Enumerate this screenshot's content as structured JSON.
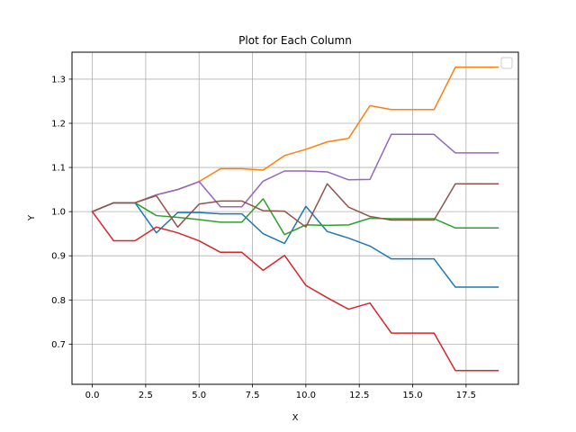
{
  "chart_data": {
    "type": "line",
    "title": "Plot for Each Column",
    "xlabel": "X",
    "ylabel": "Y",
    "xlim": [
      -0.95,
      19.95
    ],
    "ylim": [
      0.609,
      1.361
    ],
    "xticks": [
      0.0,
      2.5,
      5.0,
      7.5,
      10.0,
      12.5,
      15.0,
      17.5
    ],
    "xtick_labels": [
      "0.0",
      "2.5",
      "5.0",
      "7.5",
      "10.0",
      "12.5",
      "15.0",
      "17.5"
    ],
    "yticks": [
      0.7,
      0.8,
      0.9,
      1.0,
      1.1,
      1.2,
      1.3
    ],
    "ytick_labels": [
      "0.7",
      "0.8",
      "0.9",
      "1.0",
      "1.1",
      "1.2",
      "1.3"
    ],
    "grid": true,
    "legend": "upper right (empty)",
    "x": [
      0,
      1,
      2,
      3,
      4,
      5,
      6,
      7,
      8,
      9,
      10,
      11,
      12,
      13,
      14,
      15,
      16,
      17,
      18,
      19
    ],
    "series": [
      {
        "color": "#1f77b4",
        "values": [
          1.0,
          1.02,
          1.02,
          0.952,
          0.998,
          0.998,
          0.995,
          0.995,
          0.95,
          0.928,
          1.012,
          0.955,
          0.94,
          0.922,
          0.893,
          0.893,
          0.893,
          0.829,
          0.829,
          0.829
        ]
      },
      {
        "color": "#ff7f0e",
        "values": [
          1.0,
          1.02,
          1.02,
          1.038,
          1.05,
          1.068,
          1.097,
          1.097,
          1.094,
          1.127,
          1.141,
          1.158,
          1.166,
          1.24,
          1.231,
          1.231,
          1.231,
          1.327,
          1.327,
          1.327
        ]
      },
      {
        "color": "#2ca02c",
        "values": [
          1.0,
          1.02,
          1.02,
          0.991,
          0.987,
          0.982,
          0.976,
          0.976,
          1.029,
          0.948,
          0.97,
          0.969,
          0.97,
          0.985,
          0.984,
          0.984,
          0.984,
          0.963,
          0.963,
          0.963
        ]
      },
      {
        "color": "#d62728",
        "values": [
          1.0,
          0.934,
          0.934,
          0.965,
          0.952,
          0.934,
          0.908,
          0.908,
          0.867,
          0.901,
          0.833,
          0.805,
          0.779,
          0.793,
          0.725,
          0.725,
          0.725,
          0.64,
          0.64,
          0.64
        ]
      },
      {
        "color": "#9467bd",
        "values": [
          1.0,
          1.02,
          1.02,
          1.038,
          1.05,
          1.068,
          1.011,
          1.011,
          1.069,
          1.092,
          1.092,
          1.09,
          1.072,
          1.073,
          1.175,
          1.175,
          1.175,
          1.133,
          1.133,
          1.133
        ]
      },
      {
        "color": "#8c564b",
        "values": [
          1.0,
          1.02,
          1.02,
          1.036,
          0.965,
          1.017,
          1.024,
          1.024,
          1.002,
          1.001,
          0.965,
          1.063,
          1.01,
          0.989,
          0.981,
          0.981,
          0.981,
          1.063,
          1.063,
          1.063
        ]
      }
    ]
  }
}
